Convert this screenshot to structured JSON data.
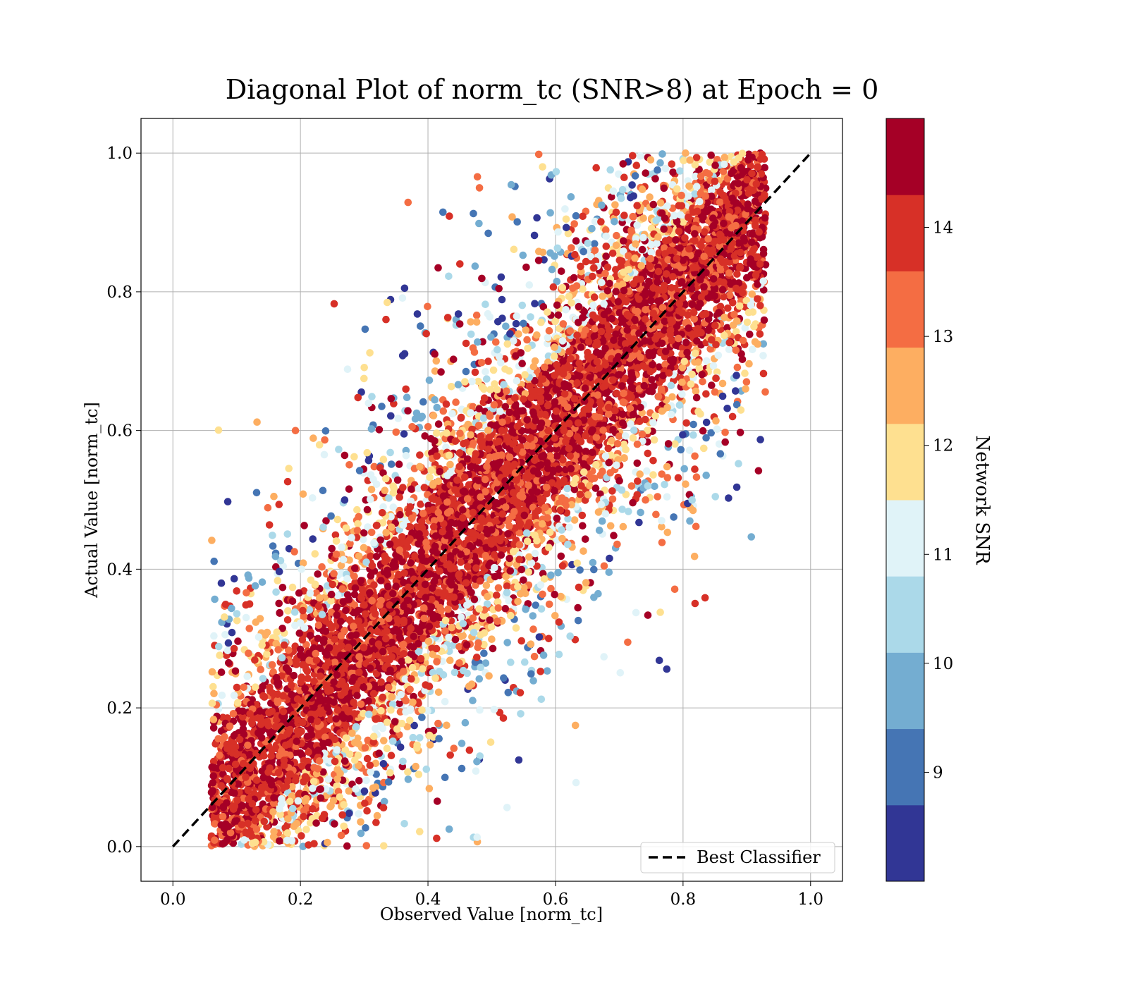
{
  "chart_data": {
    "type": "scatter",
    "title": "Diagonal Plot of norm_tc (SNR>8) at Epoch = 0",
    "xlabel": "Observed Value [norm_tc]",
    "ylabel": "Actual Value [norm_tc]",
    "xlim": [
      -0.05,
      1.05
    ],
    "ylim": [
      -0.05,
      1.05
    ],
    "xticks": [
      "0.0",
      "0.2",
      "0.4",
      "0.6",
      "0.8",
      "1.0"
    ],
    "yticks": [
      "0.0",
      "0.2",
      "0.4",
      "0.6",
      "0.8",
      "1.0"
    ],
    "grid": true,
    "legend": {
      "placement": "lower-right",
      "entries": [
        {
          "label": "Best Classifier",
          "style": "dashed-black-line"
        }
      ]
    },
    "reference_line": {
      "label": "Best Classifier",
      "x": [
        0.0,
        1.0
      ],
      "y": [
        0.0,
        1.0
      ],
      "color": "#000000",
      "style": "dashed"
    },
    "point_value_range": [
      8,
      15
    ],
    "point_clouds": [
      {
        "name_hint": "",
        "x_range": [
          0.06,
          0.93
        ],
        "y_range": [
          0.0,
          1.0
        ],
        "core_offset": 0.0,
        "core_spread": 0.09,
        "tail_spread": 0.2,
        "snr_high_fraction": 0.7
      }
    ],
    "colorbar": {
      "label": "Network SNR",
      "range": [
        8,
        15
      ],
      "ticks": [
        "9",
        "10",
        "11",
        "12",
        "13",
        "14"
      ],
      "tick_values": [
        9,
        10,
        11,
        12,
        13,
        14
      ],
      "colors": [
        "#313695",
        "#4575b4",
        "#74add1",
        "#abd9e9",
        "#e0f3f8",
        "#fee090",
        "#fdae61",
        "#f46d43",
        "#d73027",
        "#a50026"
      ]
    }
  }
}
